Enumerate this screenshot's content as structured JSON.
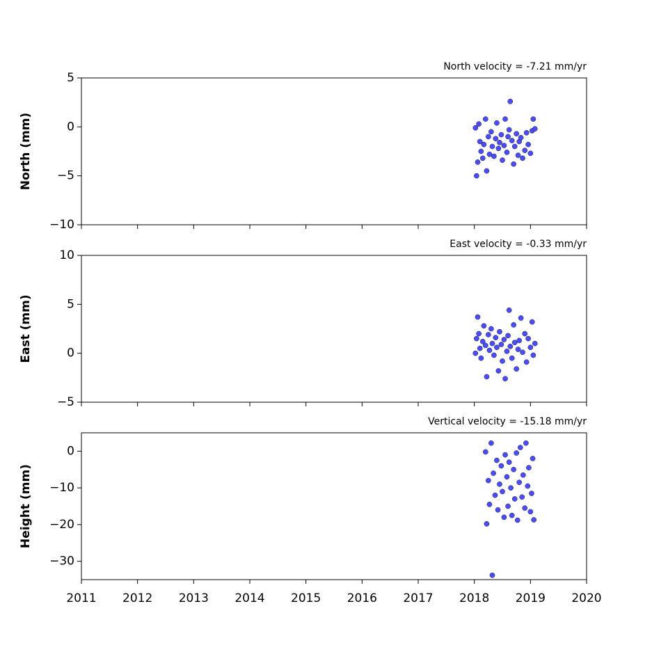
{
  "chart_data": [
    {
      "type": "scatter",
      "title": "North velocity = -7.21 mm/yr",
      "ylabel": "North (mm)",
      "color": "#4b4bff",
      "x": [
        2018.02,
        2018.04,
        2018.06,
        2018.08,
        2018.1,
        2018.12,
        2018.15,
        2018.17,
        2018.2,
        2018.22,
        2018.25,
        2018.27,
        2018.3,
        2018.32,
        2018.35,
        2018.38,
        2018.4,
        2018.43,
        2018.45,
        2018.48,
        2018.5,
        2018.53,
        2018.55,
        2018.58,
        2018.6,
        2018.62,
        2018.64,
        2018.67,
        2018.7,
        2018.72,
        2018.75,
        2018.78,
        2018.8,
        2018.83,
        2018.86,
        2018.9,
        2018.93,
        2018.96,
        2019.0,
        2019.03,
        2019.05,
        2019.08
      ],
      "values": [
        -0.1,
        -5.0,
        -3.6,
        0.3,
        -1.5,
        -2.5,
        -3.2,
        -1.8,
        0.8,
        -4.5,
        -1.0,
        -2.8,
        -0.5,
        -2.0,
        -3.0,
        -1.2,
        0.4,
        -2.2,
        -1.6,
        -0.8,
        -3.4,
        -1.9,
        0.8,
        -2.6,
        -1.0,
        -0.3,
        2.6,
        -1.4,
        -3.8,
        -2.0,
        -0.7,
        -2.9,
        -1.5,
        -1.1,
        -3.2,
        -2.4,
        -0.6,
        -1.8,
        -2.7,
        -0.4,
        0.8,
        -0.2
      ],
      "xlim": [
        2011,
        2020
      ],
      "xticks": [
        2011,
        2012,
        2013,
        2014,
        2015,
        2016,
        2017,
        2018,
        2019,
        2020
      ],
      "show_xtick_labels": false,
      "ylim": [
        -10,
        5
      ],
      "yticks": [
        {
          "value": -10,
          "label": "−10"
        },
        {
          "value": -5,
          "label": "−5"
        },
        0,
        5
      ]
    },
    {
      "type": "scatter",
      "title": "East velocity = -0.33 mm/yr",
      "ylabel": "East (mm)",
      "color": "#4b4bff",
      "x": [
        2018.02,
        2018.04,
        2018.06,
        2018.08,
        2018.1,
        2018.12,
        2018.15,
        2018.17,
        2018.2,
        2018.22,
        2018.25,
        2018.27,
        2018.3,
        2018.32,
        2018.35,
        2018.38,
        2018.4,
        2018.43,
        2018.45,
        2018.48,
        2018.5,
        2018.53,
        2018.55,
        2018.58,
        2018.6,
        2018.62,
        2018.64,
        2018.67,
        2018.7,
        2018.72,
        2018.75,
        2018.78,
        2018.8,
        2018.83,
        2018.86,
        2018.9,
        2018.93,
        2018.96,
        2019.0,
        2019.03,
        2019.05,
        2019.08
      ],
      "values": [
        0.0,
        1.5,
        3.7,
        2.0,
        0.5,
        -0.5,
        1.2,
        2.8,
        0.8,
        -2.4,
        1.9,
        0.3,
        2.5,
        1.0,
        -0.2,
        1.6,
        0.6,
        -1.8,
        2.2,
        0.9,
        -0.8,
        1.4,
        -2.6,
        0.2,
        1.8,
        4.4,
        0.7,
        -0.5,
        2.9,
        1.1,
        -1.6,
        0.4,
        1.3,
        3.6,
        0.1,
        2.0,
        -0.9,
        1.5,
        0.6,
        3.2,
        -0.2,
        1.0
      ],
      "xlim": [
        2011,
        2020
      ],
      "xticks": [
        2011,
        2012,
        2013,
        2014,
        2015,
        2016,
        2017,
        2018,
        2019,
        2020
      ],
      "show_xtick_labels": false,
      "ylim": [
        -5,
        10
      ],
      "yticks": [
        {
          "value": -5,
          "label": "−5"
        },
        0,
        5,
        10
      ]
    },
    {
      "type": "scatter",
      "title": "Vertical velocity = -15.18 mm/yr",
      "ylabel": "Height (mm)",
      "color": "#4b4bff",
      "x": [
        2018.2,
        2018.22,
        2018.25,
        2018.27,
        2018.3,
        2018.32,
        2018.34,
        2018.37,
        2018.4,
        2018.42,
        2018.45,
        2018.48,
        2018.5,
        2018.53,
        2018.55,
        2018.58,
        2018.6,
        2018.62,
        2018.65,
        2018.67,
        2018.7,
        2018.72,
        2018.75,
        2018.77,
        2018.8,
        2018.82,
        2018.85,
        2018.87,
        2018.9,
        2018.92,
        2018.95,
        2018.97,
        2019.0,
        2019.02,
        2019.04,
        2019.06
      ],
      "values": [
        -0.2,
        -19.8,
        -8,
        -14.5,
        2.2,
        -33.8,
        -6,
        -12,
        -2.5,
        -16,
        -9,
        -4,
        -11,
        -18,
        -1,
        -7,
        -15,
        -3,
        -10,
        -17.5,
        -5,
        -13,
        -0.5,
        -18.8,
        -8.5,
        1.0,
        -12.5,
        -6.5,
        -15.5,
        2.2,
        -9.5,
        -4.5,
        -16.5,
        -11.5,
        -2,
        -18.7
      ],
      "xlim": [
        2011,
        2020
      ],
      "xticks": [
        2011,
        2012,
        2013,
        2014,
        2015,
        2016,
        2017,
        2018,
        2019,
        2020
      ],
      "show_xtick_labels": true,
      "ylim": [
        -35,
        5
      ],
      "yticks": [
        {
          "value": -30,
          "label": "−30"
        },
        {
          "value": -20,
          "label": "−20"
        },
        {
          "value": -10,
          "label": "−10"
        },
        0
      ]
    }
  ]
}
